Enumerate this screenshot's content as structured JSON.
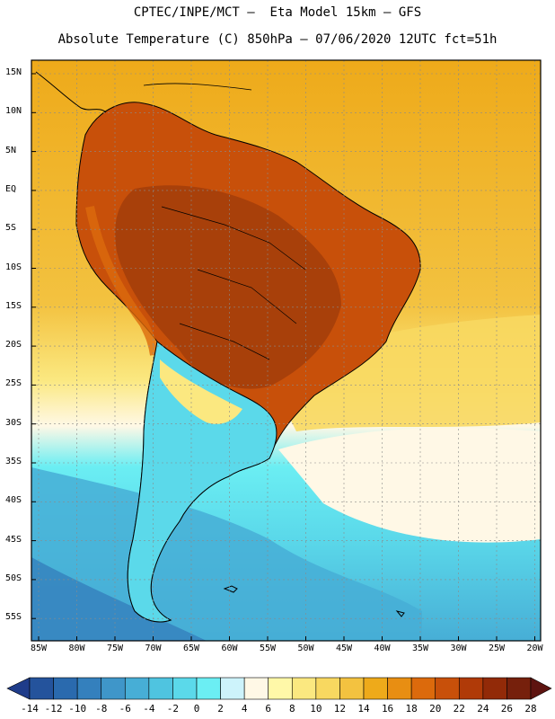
{
  "header": {
    "line1": "CPTEC/INPE/MCT –  Eta Model 15km – GFS",
    "line2": "Absolute Temperature (C) 850hPa – 07/06/2020 12UTC fct=51h"
  },
  "lat_labels": [
    "15N",
    "10N",
    "5N",
    "EQ",
    "5S",
    "10S",
    "15S",
    "20S",
    "25S",
    "30S",
    "35S",
    "40S",
    "45S",
    "50S",
    "55S"
  ],
  "lon_labels": [
    "85W",
    "80W",
    "75W",
    "70W",
    "65W",
    "60W",
    "55W",
    "50W",
    "45W",
    "40W",
    "35W",
    "30W",
    "25W",
    "20W"
  ],
  "colorbar": {
    "ticks": [
      "-14",
      "-12",
      "-10",
      "-8",
      "-6",
      "-4",
      "-2",
      "0",
      "2",
      "4",
      "6",
      "8",
      "10",
      "12",
      "14",
      "16",
      "18",
      "20",
      "22",
      "24",
      "26",
      "28"
    ],
    "colors": [
      "#1f3c8a",
      "#24539c",
      "#2a6aae",
      "#3480bd",
      "#3f96c9",
      "#47aed6",
      "#4fc4e0",
      "#5bd9ea",
      "#6beef3",
      "#cdf3fb",
      "#fff8e6",
      "#fff8a8",
      "#fbe880",
      "#f8d860",
      "#f3c240",
      "#eeaa1a",
      "#e88e12",
      "#dc6a0c",
      "#c8500a",
      "#b03a08",
      "#922a08",
      "#76200c",
      "#5e1410"
    ]
  },
  "map_colors": {
    "ocean_north": "#eeaa1a",
    "land_warm": "#c8500a",
    "land_hot": "#a8400a",
    "mid_lat": "#fbe880",
    "cream": "#fff8e6",
    "cold": "#5bd9ea",
    "colder": "#47aed6",
    "coldest": "#3480bd",
    "coast": "#000000"
  }
}
